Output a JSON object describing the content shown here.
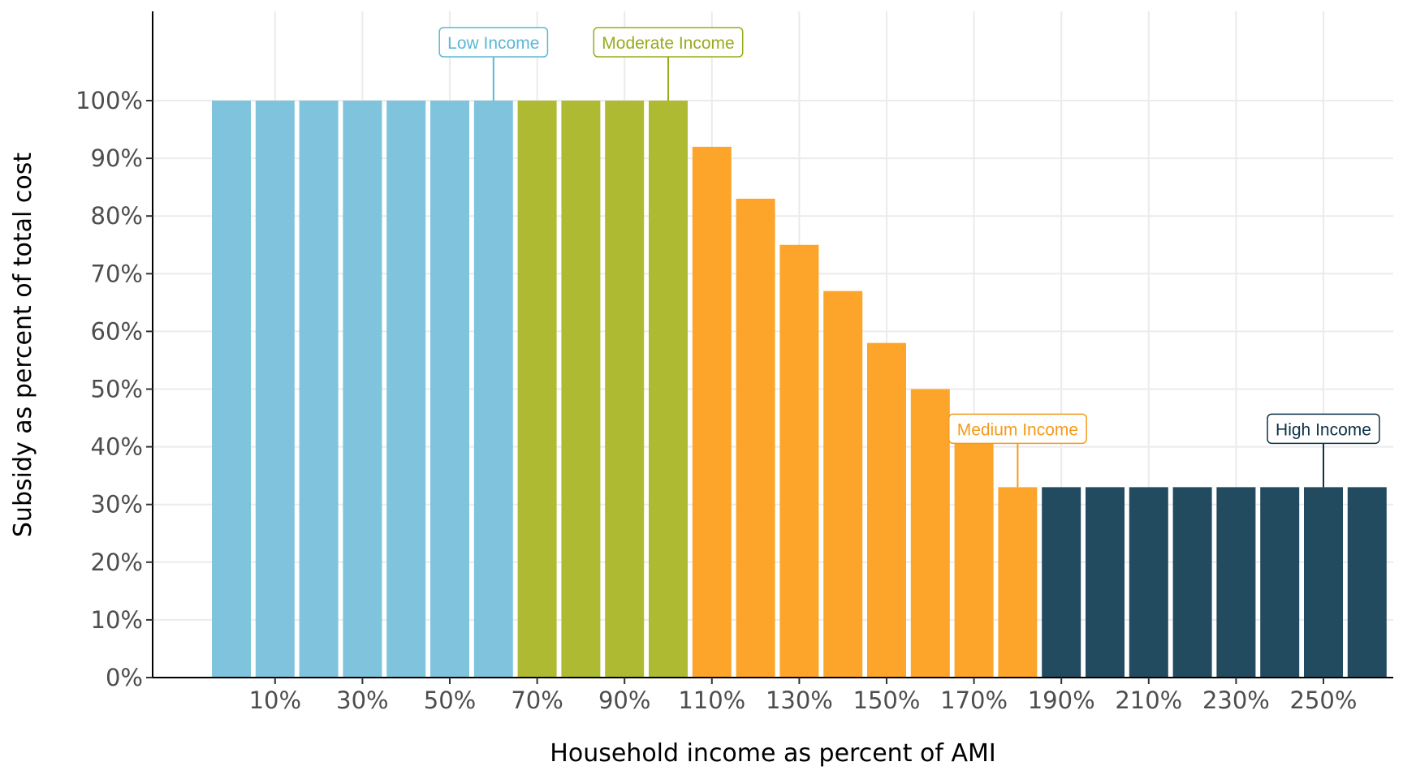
{
  "chart_data": {
    "type": "bar",
    "xlabel": "Household income as percent of AMI",
    "ylabel": "Subsidy as percent of total cost",
    "ylim": [
      0,
      100
    ],
    "yticks": [
      "0%",
      "10%",
      "20%",
      "30%",
      "40%",
      "50%",
      "60%",
      "70%",
      "80%",
      "90%",
      "100%"
    ],
    "xticks": [
      "10%",
      "30%",
      "50%",
      "70%",
      "90%",
      "110%",
      "130%",
      "150%",
      "170%",
      "190%",
      "210%",
      "230%",
      "250%"
    ],
    "grid": true,
    "x": [
      0,
      10,
      20,
      30,
      40,
      50,
      60,
      70,
      80,
      90,
      100,
      110,
      120,
      130,
      140,
      150,
      160,
      170,
      180,
      190,
      200,
      210,
      220,
      230,
      240,
      250,
      260
    ],
    "values": [
      100,
      100,
      100,
      100,
      100,
      100,
      100,
      100,
      100,
      100,
      100,
      92,
      83,
      75,
      67,
      58,
      50,
      42,
      33,
      33,
      33,
      33,
      33,
      33,
      33,
      33,
      33
    ],
    "groups": [
      "Low Income",
      "Low Income",
      "Low Income",
      "Low Income",
      "Low Income",
      "Low Income",
      "Low Income",
      "Moderate Income",
      "Moderate Income",
      "Moderate Income",
      "Moderate Income",
      "Medium Income",
      "Medium Income",
      "Medium Income",
      "Medium Income",
      "Medium Income",
      "Medium Income",
      "Medium Income",
      "Medium Income",
      "High Income",
      "High Income",
      "High Income",
      "High Income",
      "High Income",
      "High Income",
      "High Income",
      "High Income"
    ],
    "colors": {
      "Low Income": "#7fc4dc",
      "Moderate Income": "#aebb32",
      "Medium Income": "#fca52a",
      "High Income": "#234b60"
    },
    "label_colors": {
      "Low Income": "#5bb8d4",
      "Moderate Income": "#9aab1a",
      "Medium Income": "#f59a1b",
      "High Income": "#0e3347"
    },
    "annotations": [
      {
        "text": "Low Income",
        "x": 60,
        "y": 100
      },
      {
        "text": "Moderate Income",
        "x": 100,
        "y": 100
      },
      {
        "text": "Medium Income",
        "x": 180,
        "y": 33
      },
      {
        "text": "High Income",
        "x": 250,
        "y": 33
      }
    ]
  }
}
